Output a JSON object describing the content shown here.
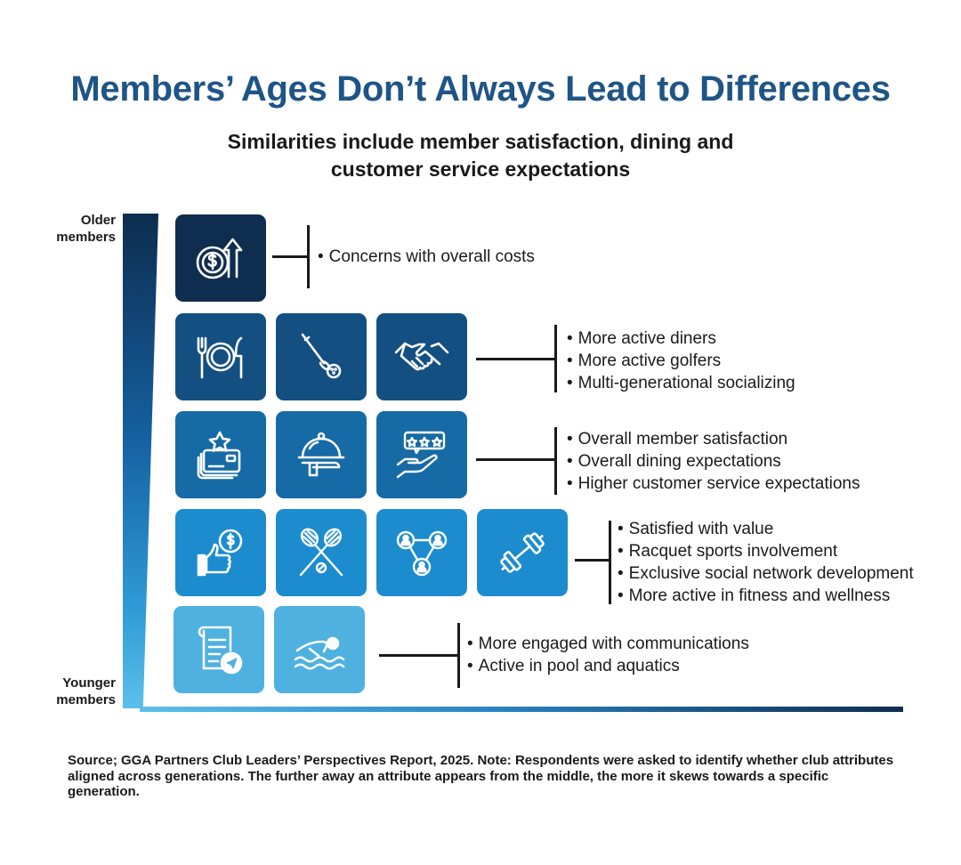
{
  "title": "Members’ Ages Don’t Always Lead to Differences",
  "subtitle": {
    "line1": "Similarities include member satisfaction, dining and",
    "line2": "customer service expectations"
  },
  "axis": {
    "older": {
      "line1": "Older",
      "line2": "members"
    },
    "younger": {
      "line1": "Younger",
      "line2": "members"
    }
  },
  "rows": [
    {
      "icons": [
        "dollar-arrow-up-icon"
      ],
      "bullets": [
        "Concerns with overall costs"
      ]
    },
    {
      "icons": [
        "plate-fork-knife-icon",
        "golf-club-ball-icon",
        "handshake-icon"
      ],
      "bullets": [
        "More active diners",
        "More active golfers",
        "Multi-generational socializing"
      ]
    },
    {
      "icons": [
        "cards-star-icon",
        "serving-cloche-icon",
        "hand-rating-stars-icon"
      ],
      "bullets": [
        "Overall member satisfaction",
        "Overall dining expectations",
        "Higher customer service expectations"
      ]
    },
    {
      "icons": [
        "thumbs-up-dollar-icon",
        "crossed-rackets-icon",
        "social-network-icon",
        "dumbbell-icon"
      ],
      "bullets": [
        "Satisfied with value",
        "Racquet sports involvement",
        "Exclusive social network development",
        "More active in fitness and wellness"
      ]
    },
    {
      "icons": [
        "document-send-icon",
        "swimmer-icon"
      ],
      "bullets": [
        "More engaged with communications",
        "Active in pool and aquatics"
      ]
    }
  ],
  "colors": {
    "title": "#1f5486",
    "row1": "#0f2d4e",
    "row2": "#144f82",
    "row3": "#166aa5",
    "row4": "#1c8ccf",
    "row5": "#4fb1e0"
  },
  "source": "Source;  GGA Partners Club Leaders’ Perspectives Report, 2025. Note: Respondents were asked to identify whether club attributes aligned across generations. The further away an attribute appears from the middle, the more it skews towards a specific generation."
}
